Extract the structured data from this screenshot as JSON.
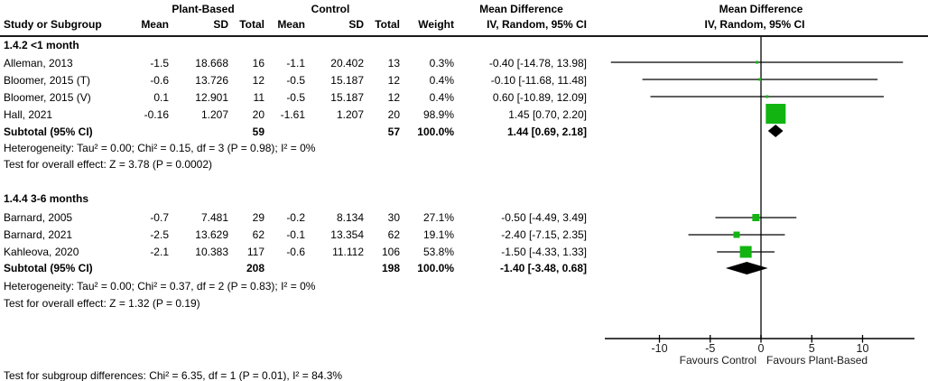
{
  "table_header": {
    "study_col": "Study or Subgroup",
    "group1": "Plant-Based",
    "group2": "Control",
    "mean": "Mean",
    "sd": "SD",
    "total": "Total",
    "weight": "Weight",
    "md_title": "Mean Difference",
    "md_subtitle": "IV, Random, 95% CI",
    "plot_title": "Mean Difference",
    "plot_subtitle": "IV, Random, 95% CI"
  },
  "chart_data": {
    "type": "scatter",
    "variant": "forest-plot",
    "effect_measure": "Mean Difference (IV, Random, 95% CI)",
    "axis": {
      "ticks": [
        -10,
        -5,
        0,
        5,
        10
      ],
      "range": [
        -15.4,
        15.1
      ],
      "zero": 0,
      "left_label": "Favours Control",
      "right_label": "Favours Plant-Based"
    },
    "subgroups": [
      {
        "title": "1.4.2 <1 month",
        "studies": [
          {
            "name": "Alleman, 2013",
            "mean1": "-1.5",
            "sd1": "18.668",
            "total1": "16",
            "mean2": "-1.1",
            "sd2": "20.402",
            "total2": "13",
            "weight_text": "0.3%",
            "md_text": "-0.40 [-14.78, 13.98]",
            "est": -0.4,
            "lo": -14.78,
            "hi": 13.98,
            "wt": 0.3
          },
          {
            "name": "Bloomer, 2015 (T)",
            "mean1": "-0.6",
            "sd1": "13.726",
            "total1": "12",
            "mean2": "-0.5",
            "sd2": "15.187",
            "total2": "12",
            "weight_text": "0.4%",
            "md_text": "-0.10 [-11.68, 11.48]",
            "est": -0.1,
            "lo": -11.68,
            "hi": 11.48,
            "wt": 0.4
          },
          {
            "name": "Bloomer, 2015 (V)",
            "mean1": "0.1",
            "sd1": "12.901",
            "total1": "11",
            "mean2": "-0.5",
            "sd2": "15.187",
            "total2": "12",
            "weight_text": "0.4%",
            "md_text": "0.60 [-10.89, 12.09]",
            "est": 0.6,
            "lo": -10.89,
            "hi": 12.09,
            "wt": 0.4
          },
          {
            "name": "Hall, 2021",
            "mean1": "-0.16",
            "sd1": "1.207",
            "total1": "20",
            "mean2": "-1.61",
            "sd2": "1.207",
            "total2": "20",
            "weight_text": "98.9%",
            "md_text": "1.45 [0.70, 2.20]",
            "est": 1.45,
            "lo": 0.7,
            "hi": 2.2,
            "wt": 98.9
          }
        ],
        "subtotal": {
          "label": "Subtotal (95% CI)",
          "total1": "59",
          "total2": "57",
          "weight_text": "100.0%",
          "md_text": "1.44 [0.69, 2.18]",
          "est": 1.44,
          "lo": 0.69,
          "hi": 2.18
        },
        "heterogeneity": "Heterogeneity: Tau² = 0.00; Chi² = 0.15, df = 3 (P = 0.98); I² = 0%",
        "overall_effect": "Test for overall effect: Z = 3.78 (P = 0.0002)"
      },
      {
        "title": "1.4.4 3-6 months",
        "studies": [
          {
            "name": "Barnard, 2005",
            "mean1": "-0.7",
            "sd1": "7.481",
            "total1": "29",
            "mean2": "-0.2",
            "sd2": "8.134",
            "total2": "30",
            "weight_text": "27.1%",
            "md_text": "-0.50 [-4.49, 3.49]",
            "est": -0.5,
            "lo": -4.49,
            "hi": 3.49,
            "wt": 27.1
          },
          {
            "name": "Barnard, 2021",
            "mean1": "-2.5",
            "sd1": "13.629",
            "total1": "62",
            "mean2": "-0.1",
            "sd2": "13.354",
            "total2": "62",
            "weight_text": "19.1%",
            "md_text": "-2.40 [-7.15, 2.35]",
            "est": -2.4,
            "lo": -7.15,
            "hi": 2.35,
            "wt": 19.1
          },
          {
            "name": "Kahleova, 2020",
            "mean1": "-2.1",
            "sd1": "10.383",
            "total1": "117",
            "mean2": "-0.6",
            "sd2": "11.112",
            "total2": "106",
            "weight_text": "53.8%",
            "md_text": "-1.50 [-4.33, 1.33]",
            "est": -1.5,
            "lo": -4.33,
            "hi": 1.33,
            "wt": 53.8
          }
        ],
        "subtotal": {
          "label": "Subtotal (95% CI)",
          "total1": "208",
          "total2": "198",
          "weight_text": "100.0%",
          "md_text": "-1.40 [-3.48, 0.68]",
          "est": -1.4,
          "lo": -3.48,
          "hi": 0.68
        },
        "heterogeneity": "Heterogeneity: Tau² = 0.00; Chi² = 0.37, df = 2 (P = 0.83); I² = 0%",
        "overall_effect": "Test for overall effect: Z = 1.32 (P = 0.19)"
      }
    ]
  },
  "footer": {
    "subgroup_diff": "Test for subgroup differences: Chi² = 6.35, df = 1 (P = 0.01), I² = 84.3%"
  },
  "colors": {
    "marker_green": "#12b412",
    "diamond_black": "#000000",
    "line_black": "#000000",
    "zero_line": "#333333"
  }
}
